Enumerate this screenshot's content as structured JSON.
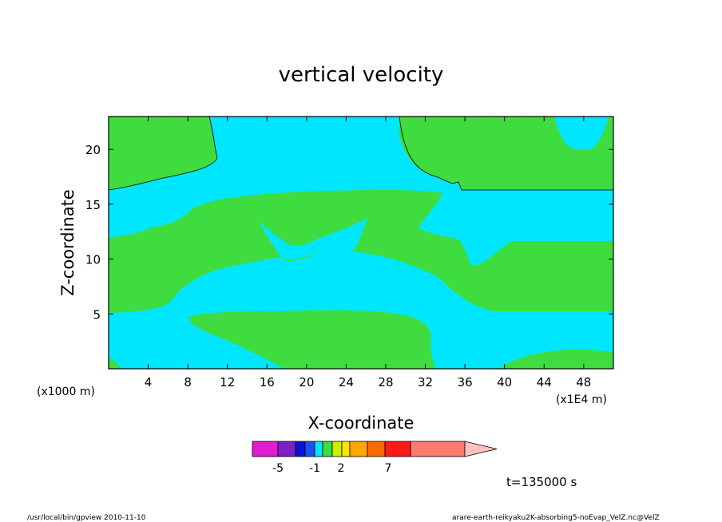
{
  "chart_data": {
    "type": "contour",
    "title": "vertical velocity",
    "xlabel": "X-coordinate",
    "ylabel": "Z-coordinate",
    "x_unit_left": "(x1000 m)",
    "x_unit_right": "(x1E4 m)",
    "xlim": [
      0,
      51
    ],
    "ylim": [
      0,
      23
    ],
    "xticks": [
      "4",
      "8",
      "12",
      "16",
      "20",
      "24",
      "28",
      "32",
      "36",
      "40",
      "44",
      "48"
    ],
    "yticks": [
      "5",
      "10",
      "15",
      "20"
    ],
    "colorbar": {
      "colors": [
        "#e21ccf",
        "#7d1fc8",
        "#0c14d0",
        "#1b4ff3",
        "#00e6ff",
        "#3fdc3f",
        "#c8f000",
        "#ffe600",
        "#ffa800",
        "#ff6a00",
        "#ff1a1a",
        "#ff7a70",
        "#ffc0c0"
      ],
      "labels": [
        "-5",
        "-1",
        "2",
        "7"
      ]
    },
    "regions_present": [
      {
        "color": "#00e6ff",
        "meaning": "negative"
      },
      {
        "color": "#3fdc3f",
        "meaning": "positive"
      }
    ],
    "time_label": "t=135000 s"
  },
  "footer": {
    "left": "/usr/local/bin/gpview  2010-11-10",
    "right": "arare-earth-reikyaku2K-absorbing5-noEvap_VelZ.nc@VelZ"
  }
}
